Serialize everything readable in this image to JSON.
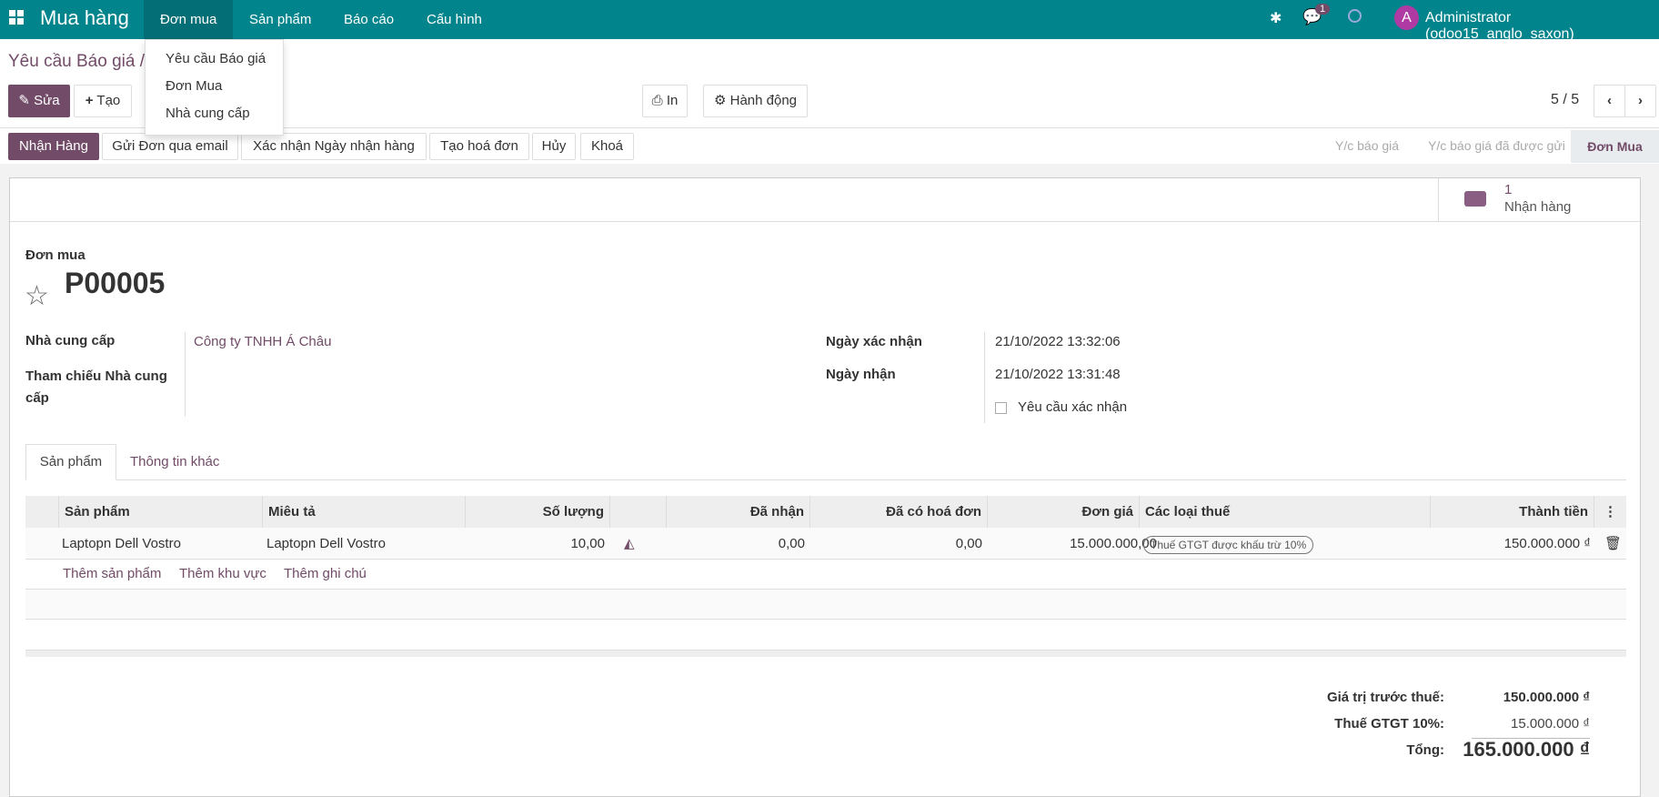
{
  "nav": {
    "app": "Mua hàng",
    "menus": [
      "Đơn mua",
      "Sản phẩm",
      "Báo cáo",
      "Cấu hình"
    ],
    "chat_count": "1",
    "avatar": "A",
    "user": "Administrator (odoo15_anglo_saxon)",
    "dropdown": [
      "Yêu cầu Báo giá",
      "Đơn Mua",
      "Nhà cung cấp"
    ]
  },
  "breadcrumb": "Yêu cầu Báo giá /",
  "toolbar": {
    "edit": "Sửa",
    "create": "Tạo",
    "print": "In",
    "action": "Hành động",
    "pager": "5 / 5"
  },
  "status_buttons": [
    "Nhận Hàng",
    "Gửi Đơn qua email",
    "Xác nhận Ngày nhận hàng",
    "Tạo hoá đơn",
    "Hủy",
    "Khoá"
  ],
  "stages": [
    "Y/c báo giá",
    "Y/c báo giá đã được gửi",
    "Đơn Mua"
  ],
  "smart_button": {
    "count": "1",
    "label": "Nhận hàng"
  },
  "form": {
    "type_label": "Đơn mua",
    "name": "P00005",
    "vendor_label": "Nhà cung cấp",
    "vendor": "Công ty TNHH Á Châu",
    "vendor_ref_label": "Tham chiếu Nhà cung cấp",
    "confirm_date_label": "Ngày xác nhận",
    "confirm_date": "21/10/2022 13:32:06",
    "receipt_date_label": "Ngày nhận",
    "receipt_date": "21/10/2022 13:31:48",
    "ask_confirm_label": "Yêu cầu xác nhận"
  },
  "tabs": [
    "Sản phẩm",
    "Thông tin khác"
  ],
  "table": {
    "headers": [
      "Sản phẩm",
      "Miêu tả",
      "Số lượng",
      "",
      "Đã nhận",
      "Đã có hoá đơn",
      "Đơn giá",
      "Các loại thuế",
      "Thành tiền"
    ],
    "rows": [
      {
        "product": "Laptopn Dell Vostro",
        "desc": "Laptopn Dell Vostro",
        "qty": "10,00",
        "received": "0,00",
        "invoiced": "0,00",
        "price": "15.000.000,00",
        "tax": "Thuế GTGT được khấu trừ 10%",
        "subtotal": "150.000.000 ₫"
      }
    ],
    "add_links": [
      "Thêm sản phẩm",
      "Thêm khu vực",
      "Thêm ghi chú"
    ]
  },
  "totals": {
    "untaxed_label": "Giá trị trước thuế:",
    "untaxed": "150.000.000 ₫",
    "tax_label": "Thuế GTGT 10%:",
    "tax": "15.000.000 ₫",
    "total_label": "Tổng:",
    "total": "165.000.000 ₫"
  },
  "colors": {
    "navbar": "#01848c",
    "primary": "#714b67"
  }
}
